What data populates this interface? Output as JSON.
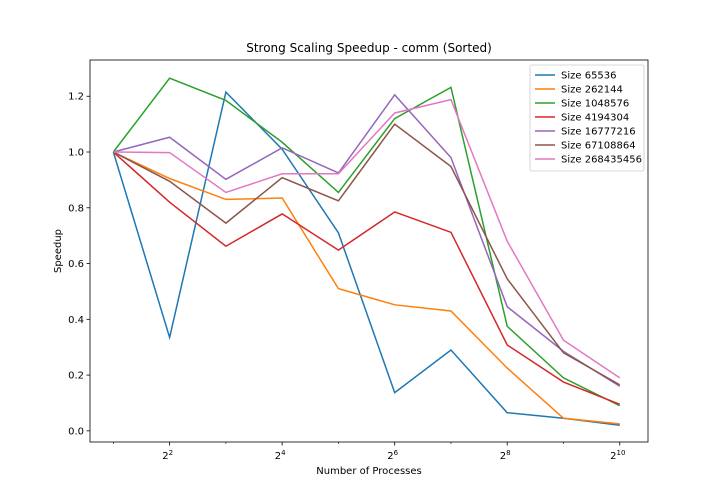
{
  "chart_data": {
    "type": "line",
    "title": "Strong Scaling Speedup - comm (Sorted)",
    "xlabel": "Number of Processes",
    "ylabel": "Speedup",
    "x_scale": "log2",
    "x": [
      2,
      4,
      8,
      16,
      32,
      64,
      128,
      256,
      512,
      1024
    ],
    "xlim": [
      1.5,
      1450
    ],
    "ylim": [
      -0.04,
      1.33
    ],
    "x_ticks": [
      {
        "value": 4,
        "base": "2",
        "exp": "2"
      },
      {
        "value": 16,
        "base": "2",
        "exp": "4"
      },
      {
        "value": 64,
        "base": "2",
        "exp": "6"
      },
      {
        "value": 256,
        "base": "2",
        "exp": "8"
      },
      {
        "value": 1024,
        "base": "2",
        "exp": "10"
      }
    ],
    "y_ticks": [
      {
        "value": 0.0,
        "label": "0.0"
      },
      {
        "value": 0.2,
        "label": "0.2"
      },
      {
        "value": 0.4,
        "label": "0.4"
      },
      {
        "value": 0.6,
        "label": "0.6"
      },
      {
        "value": 0.8,
        "label": "0.8"
      },
      {
        "value": 1.0,
        "label": "1.0"
      },
      {
        "value": 1.2,
        "label": "1.2"
      }
    ],
    "grid": false,
    "legend_position": "top-right",
    "series": [
      {
        "name": "Size 65536",
        "color": "#1f77b4",
        "values": [
          1.0,
          0.335,
          1.215,
          1.01,
          0.71,
          0.137,
          0.29,
          0.065,
          0.045,
          0.02
        ]
      },
      {
        "name": "Size 262144",
        "color": "#ff7f0e",
        "values": [
          1.0,
          0.905,
          0.83,
          0.835,
          0.51,
          0.452,
          0.43,
          0.225,
          0.045,
          0.025
        ]
      },
      {
        "name": "Size 1048576",
        "color": "#2ca02c",
        "values": [
          1.0,
          1.265,
          1.185,
          1.035,
          0.855,
          1.12,
          1.232,
          0.375,
          0.19,
          0.09
        ]
      },
      {
        "name": "Size 4194304",
        "color": "#d62728",
        "values": [
          1.0,
          0.82,
          0.662,
          0.778,
          0.648,
          0.785,
          0.712,
          0.308,
          0.175,
          0.095
        ]
      },
      {
        "name": "Size 16777216",
        "color": "#9467bd",
        "values": [
          1.0,
          1.053,
          0.902,
          1.015,
          0.925,
          1.205,
          0.98,
          0.445,
          0.285,
          0.16
        ]
      },
      {
        "name": "Size 67108864",
        "color": "#8c564b",
        "values": [
          1.0,
          0.895,
          0.745,
          0.908,
          0.825,
          1.1,
          0.948,
          0.545,
          0.28,
          0.165
        ]
      },
      {
        "name": "Size 268435456",
        "color": "#e377c2",
        "values": [
          1.0,
          0.998,
          0.855,
          0.922,
          0.922,
          1.14,
          1.188,
          0.68,
          0.325,
          0.19
        ]
      }
    ]
  }
}
